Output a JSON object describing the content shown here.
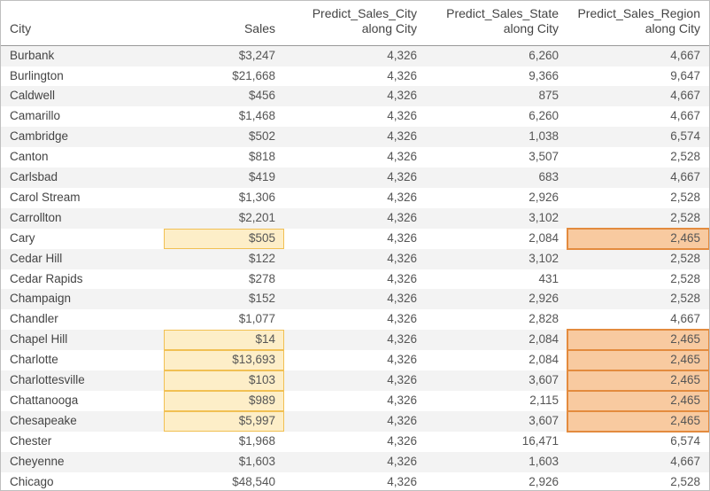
{
  "table": {
    "columns": [
      {
        "key": "city",
        "label": "City",
        "align": "left"
      },
      {
        "key": "sales",
        "label": "Sales",
        "align": "right"
      },
      {
        "key": "pred_city",
        "label": "Predict_Sales_City\nalong City",
        "align": "right"
      },
      {
        "key": "pred_state",
        "label": "Predict_Sales_State\nalong City",
        "align": "right"
      },
      {
        "key": "pred_region",
        "label": "Predict_Sales_Region\nalong City",
        "align": "right"
      }
    ],
    "rows": [
      {
        "city": "Burbank",
        "sales": "$3,247",
        "pred_city": "4,326",
        "pred_state": "6,260",
        "pred_region": "4,667"
      },
      {
        "city": "Burlington",
        "sales": "$21,668",
        "pred_city": "4,326",
        "pred_state": "9,366",
        "pred_region": "9,647"
      },
      {
        "city": "Caldwell",
        "sales": "$456",
        "pred_city": "4,326",
        "pred_state": "875",
        "pred_region": "4,667"
      },
      {
        "city": "Camarillo",
        "sales": "$1,468",
        "pred_city": "4,326",
        "pred_state": "6,260",
        "pred_region": "4,667"
      },
      {
        "city": "Cambridge",
        "sales": "$502",
        "pred_city": "4,326",
        "pred_state": "1,038",
        "pred_region": "6,574"
      },
      {
        "city": "Canton",
        "sales": "$818",
        "pred_city": "4,326",
        "pred_state": "3,507",
        "pred_region": "2,528"
      },
      {
        "city": "Carlsbad",
        "sales": "$419",
        "pred_city": "4,326",
        "pred_state": "683",
        "pred_region": "4,667"
      },
      {
        "city": "Carol Stream",
        "sales": "$1,306",
        "pred_city": "4,326",
        "pred_state": "2,926",
        "pred_region": "2,528"
      },
      {
        "city": "Carrollton",
        "sales": "$2,201",
        "pred_city": "4,326",
        "pred_state": "3,102",
        "pred_region": "2,528"
      },
      {
        "city": "Cary",
        "sales": "$505",
        "pred_city": "4,326",
        "pred_state": "2,084",
        "pred_region": "2,465",
        "hl_sales": "yellow",
        "hl_region": "orange"
      },
      {
        "city": "Cedar Hill",
        "sales": "$122",
        "pred_city": "4,326",
        "pred_state": "3,102",
        "pred_region": "2,528"
      },
      {
        "city": "Cedar Rapids",
        "sales": "$278",
        "pred_city": "4,326",
        "pred_state": "431",
        "pred_region": "2,528"
      },
      {
        "city": "Champaign",
        "sales": "$152",
        "pred_city": "4,326",
        "pred_state": "2,926",
        "pred_region": "2,528"
      },
      {
        "city": "Chandler",
        "sales": "$1,077",
        "pred_city": "4,326",
        "pred_state": "2,828",
        "pred_region": "4,667"
      },
      {
        "city": "Chapel Hill",
        "sales": "$14",
        "pred_city": "4,326",
        "pred_state": "2,084",
        "pred_region": "2,465",
        "hl_sales": "yellow",
        "hl_region": "orange"
      },
      {
        "city": "Charlotte",
        "sales": "$13,693",
        "pred_city": "4,326",
        "pred_state": "2,084",
        "pred_region": "2,465",
        "hl_sales": "yellow",
        "hl_region": "orange"
      },
      {
        "city": "Charlottesville",
        "sales": "$103",
        "pred_city": "4,326",
        "pred_state": "3,607",
        "pred_region": "2,465",
        "hl_sales": "yellow",
        "hl_region": "orange"
      },
      {
        "city": "Chattanooga",
        "sales": "$989",
        "pred_city": "4,326",
        "pred_state": "2,115",
        "pred_region": "2,465",
        "hl_sales": "yellow",
        "hl_region": "orange"
      },
      {
        "city": "Chesapeake",
        "sales": "$5,997",
        "pred_city": "4,326",
        "pred_state": "3,607",
        "pred_region": "2,465",
        "hl_sales": "yellow",
        "hl_region": "orange"
      },
      {
        "city": "Chester",
        "sales": "$1,968",
        "pred_city": "4,326",
        "pred_state": "16,471",
        "pred_region": "6,574"
      },
      {
        "city": "Cheyenne",
        "sales": "$1,603",
        "pred_city": "4,326",
        "pred_state": "1,603",
        "pred_region": "4,667"
      },
      {
        "city": "Chicago",
        "sales": "$48,540",
        "pred_city": "4,326",
        "pred_state": "2,926",
        "pred_region": "2,528"
      }
    ],
    "stripe_colors": {
      "odd": "#f3f3f3",
      "even": "#ffffff"
    },
    "highlight_colors": {
      "yellow": {
        "fill": "#fdeec8",
        "border": "#f1c053"
      },
      "orange": {
        "fill": "#f8caa0",
        "border": "#e38b3e"
      }
    }
  }
}
